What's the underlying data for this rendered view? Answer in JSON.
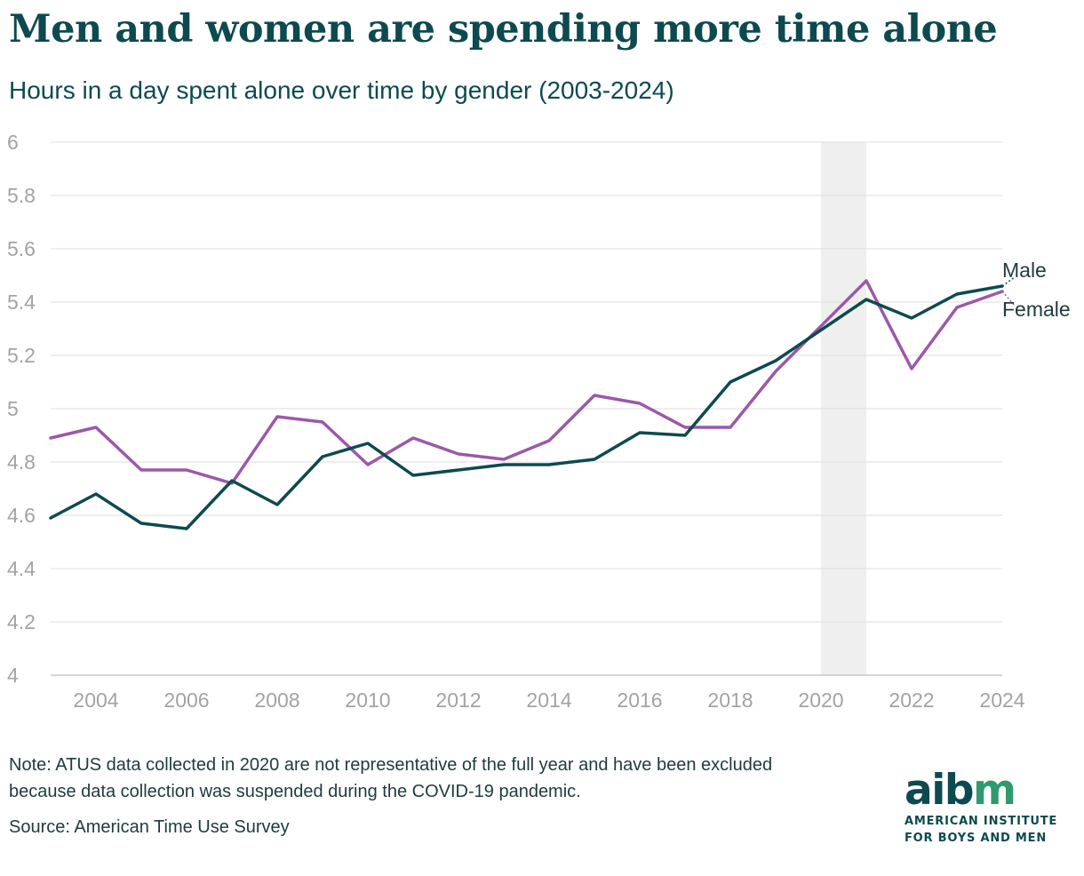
{
  "title": "Men and women are spending more time alone",
  "subtitle": "Hours in a day spent alone over time by gender (2003-2024)",
  "note": "Note: ATUS data collected in 2020 are not representative of the full year and have been excluded because data collection was suspended during the COVID-19 pandemic.",
  "source": "Source: American Time Use Survey",
  "logo": {
    "word_a": "aib",
    "word_b": "m",
    "line1": "AMERICAN INSTITUTE",
    "line2": "FOR BOYS AND MEN"
  },
  "chart_data": {
    "type": "line",
    "title": "Men and women are spending more time alone",
    "subtitle": "Hours in a day spent alone over time by gender (2003-2024)",
    "xlabel": "",
    "ylabel": "",
    "xlim": [
      2003,
      2024
    ],
    "ylim": [
      4,
      6
    ],
    "x_ticks": [
      2004,
      2006,
      2008,
      2010,
      2012,
      2014,
      2016,
      2018,
      2020,
      2022,
      2024
    ],
    "y_ticks": [
      4,
      4.2,
      4.4,
      4.6,
      4.8,
      5,
      5.2,
      5.4,
      5.6,
      5.8,
      6
    ],
    "grid": "horizontal",
    "highlight_band": [
      2020,
      2021
    ],
    "series": [
      {
        "name": "Male",
        "color": "#0d4a4f",
        "x": [
          2003,
          2004,
          2005,
          2006,
          2007,
          2008,
          2009,
          2010,
          2011,
          2012,
          2013,
          2014,
          2015,
          2016,
          2017,
          2018,
          2019,
          2021,
          2022,
          2023,
          2024
        ],
        "values": [
          4.59,
          4.68,
          4.57,
          4.55,
          4.73,
          4.64,
          4.82,
          4.87,
          4.75,
          4.77,
          4.79,
          4.79,
          4.81,
          4.91,
          4.9,
          5.1,
          5.18,
          5.41,
          5.34,
          5.43,
          5.46
        ]
      },
      {
        "name": "Female",
        "color": "#9b59a8",
        "x": [
          2003,
          2004,
          2005,
          2006,
          2007,
          2008,
          2009,
          2010,
          2011,
          2012,
          2013,
          2014,
          2015,
          2016,
          2017,
          2018,
          2019,
          2021,
          2022,
          2023,
          2024
        ],
        "values": [
          4.89,
          4.93,
          4.77,
          4.77,
          4.72,
          4.97,
          4.95,
          4.79,
          4.89,
          4.83,
          4.81,
          4.88,
          5.05,
          5.02,
          4.93,
          4.93,
          5.14,
          5.48,
          5.15,
          5.38,
          5.44
        ]
      }
    ]
  }
}
